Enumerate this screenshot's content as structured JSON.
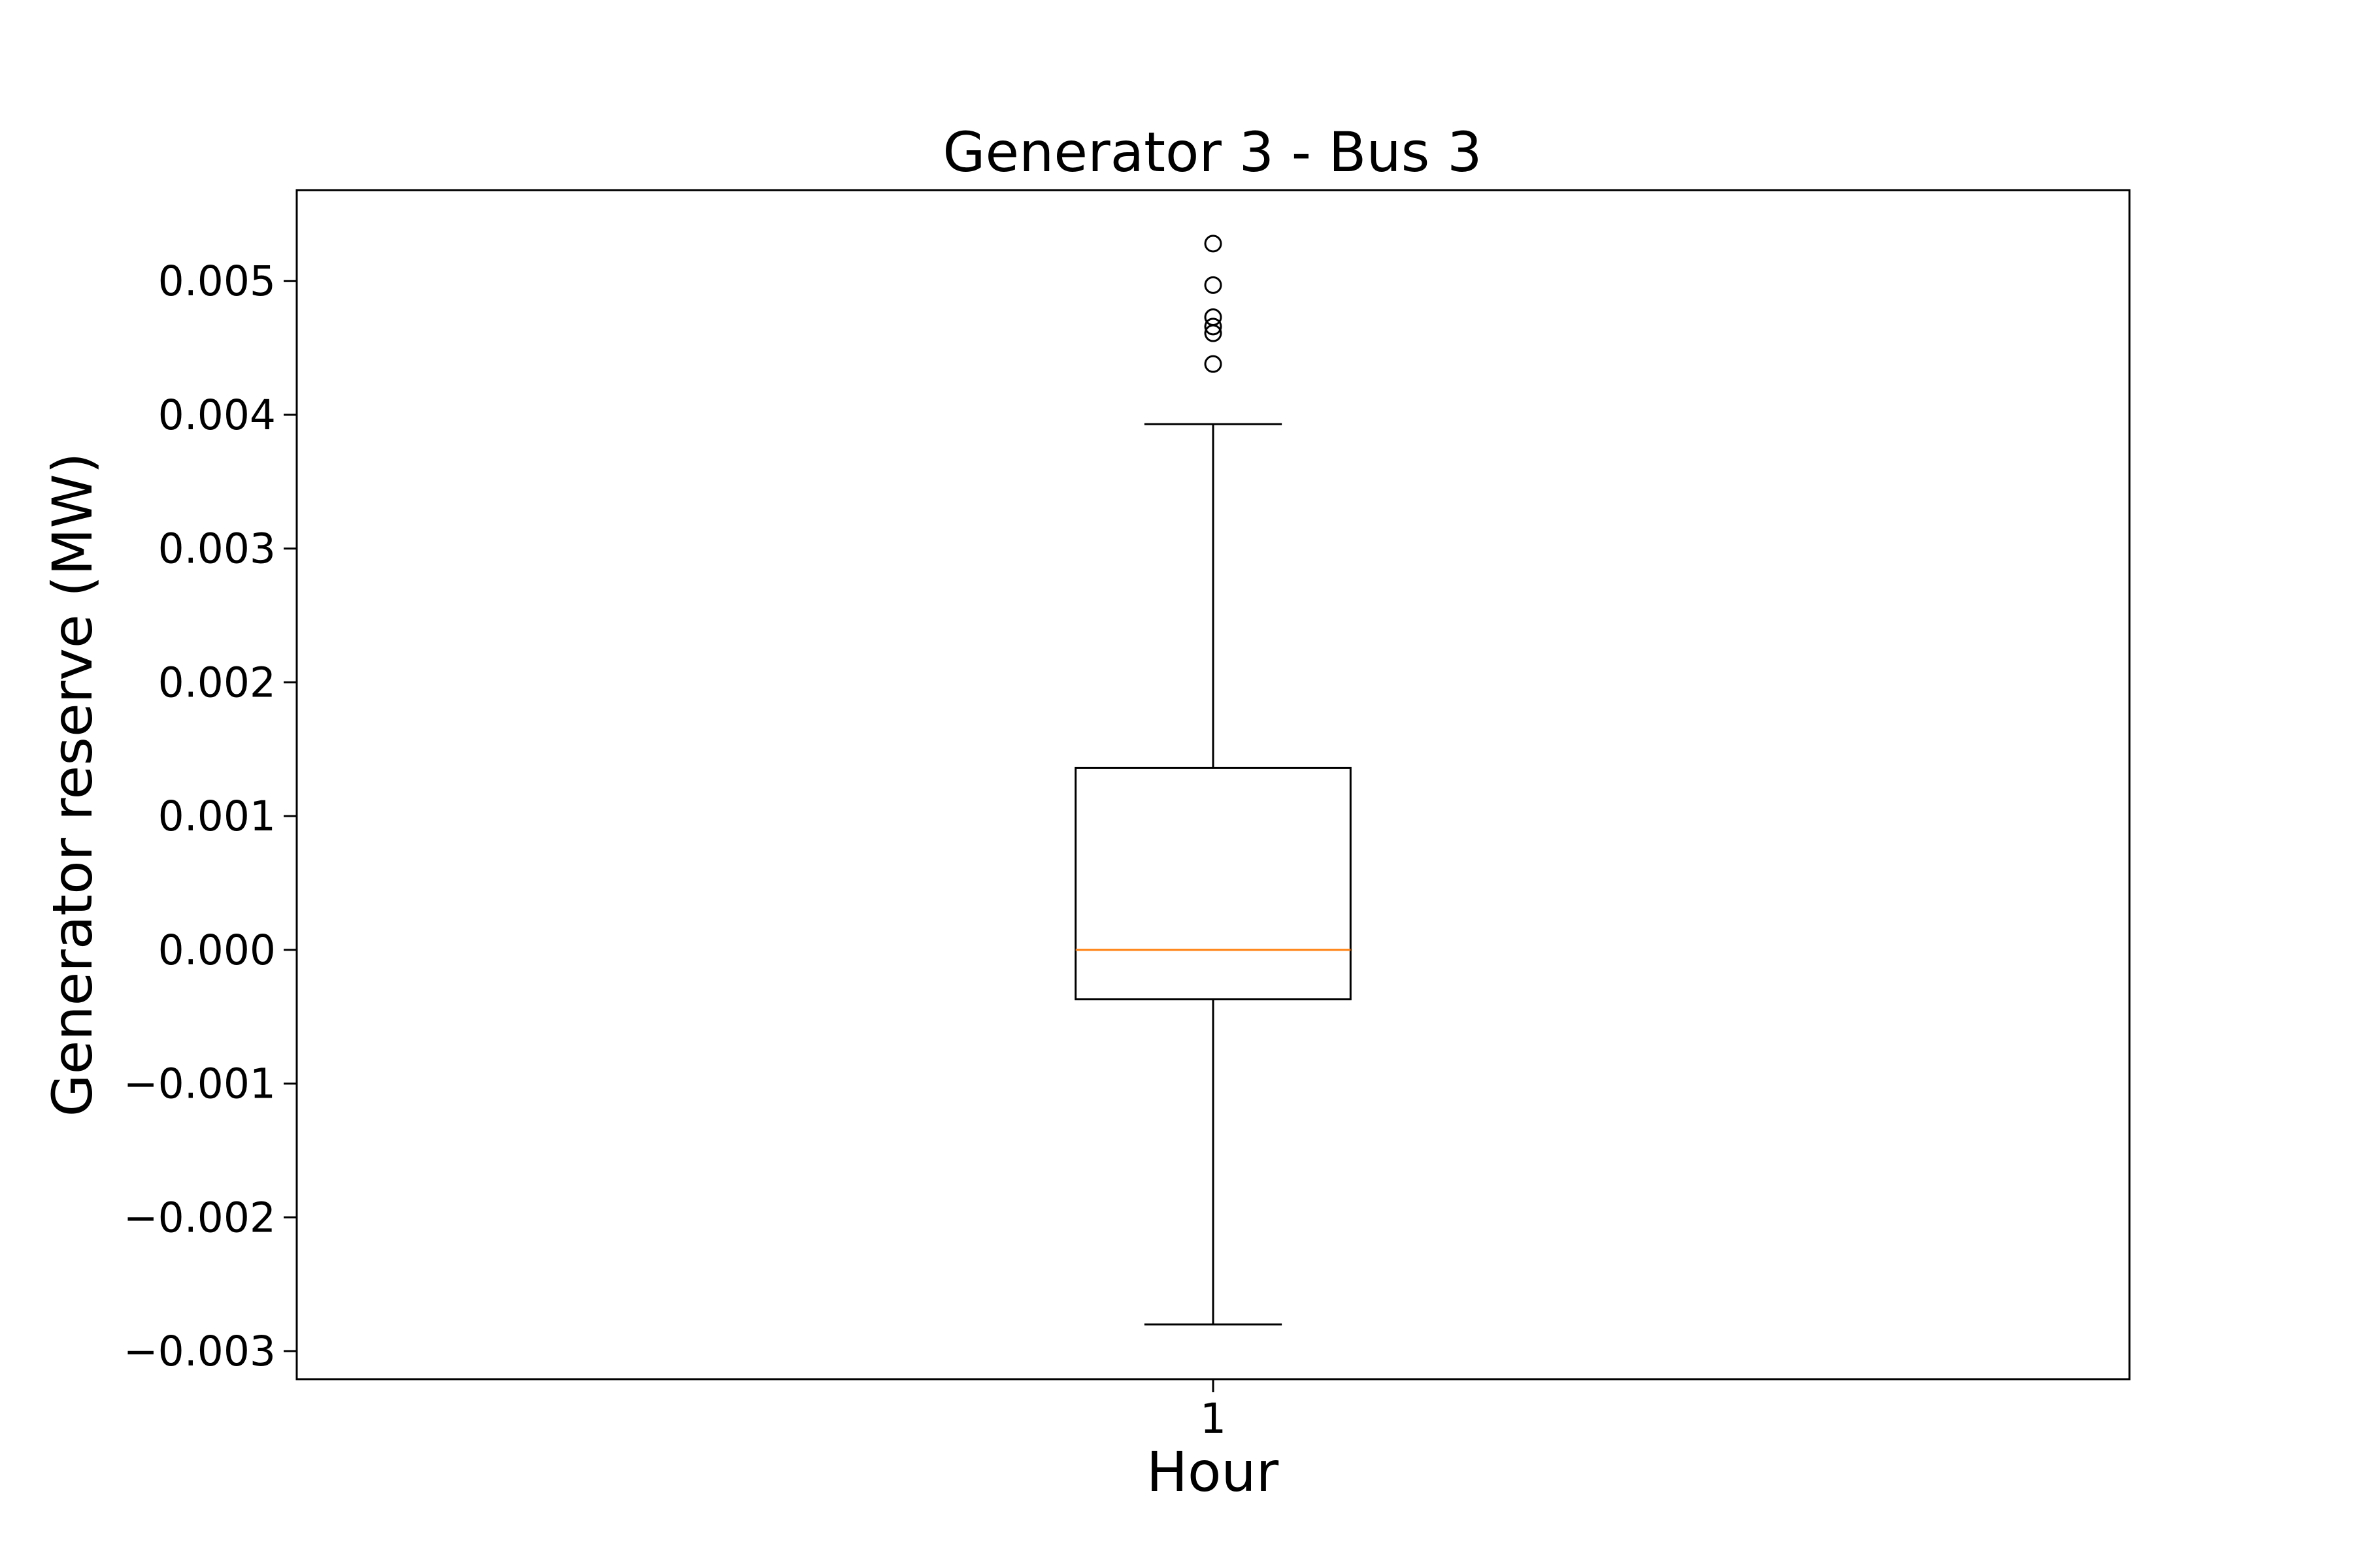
{
  "chart_data": {
    "type": "box",
    "title": "Generator 3 - Bus 3",
    "xlabel": "Hour",
    "ylabel": "Generator reserve (MW)",
    "categories": [
      "1"
    ],
    "ylim": [
      -0.00321,
      0.00568
    ],
    "yticks": [
      -0.003,
      -0.002,
      -0.001,
      0.0,
      0.001,
      0.002,
      0.003,
      0.004,
      0.005
    ],
    "ytick_labels": [
      "−0.003",
      "−0.002",
      "−0.001",
      "0.000",
      "0.001",
      "0.002",
      "0.003",
      "0.004",
      "0.005"
    ],
    "boxes": [
      {
        "category": "1",
        "whisker_low": -0.0028,
        "q1": -0.00037,
        "median": 0.0,
        "q3": 0.00136,
        "whisker_high": 0.00393,
        "outliers": [
          0.00528,
          0.00497,
          0.00473,
          0.00466,
          0.00461,
          0.00438
        ]
      }
    ],
    "colors": {
      "box": "#000000",
      "median": "#ff7f0e"
    },
    "grid": false,
    "legend": "none"
  }
}
